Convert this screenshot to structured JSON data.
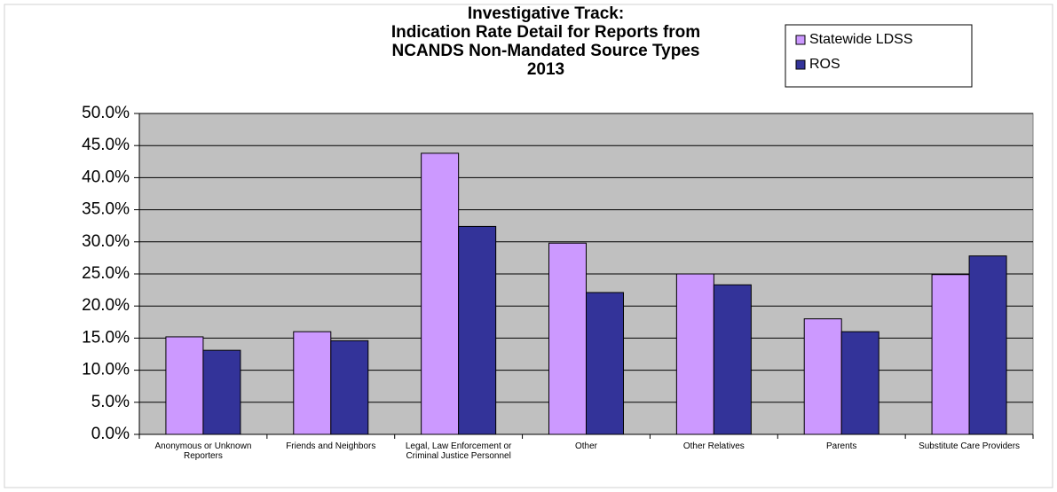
{
  "chart_data": {
    "type": "bar",
    "title": [
      "Investigative Track:",
      "Indication Rate Detail for Reports from",
      "NCANDS Non-Mandated Source Types",
      "2013"
    ],
    "categories": [
      "Anonymous or Unknown Reporters",
      "Friends and Neighbors",
      "Legal, Law Enforcement or Criminal Justice Personnel",
      "Other",
      "Other Relatives",
      "Parents",
      "Substitute Care Providers"
    ],
    "series": [
      {
        "name": "Statewide LDSS",
        "color": "#cc99ff",
        "values": [
          15.2,
          16.0,
          43.8,
          29.8,
          25.0,
          18.0,
          24.9
        ]
      },
      {
        "name": "ROS",
        "color": "#333399",
        "values": [
          13.1,
          14.6,
          32.4,
          22.1,
          23.3,
          16.0,
          27.8
        ]
      }
    ],
    "ylim": [
      0,
      50
    ],
    "yticks": [
      {
        "value": 0,
        "label": "0.0%"
      },
      {
        "value": 5,
        "label": "5.0%"
      },
      {
        "value": 10,
        "label": "10.0%"
      },
      {
        "value": 15,
        "label": "15.0%"
      },
      {
        "value": 20,
        "label": "20.0%"
      },
      {
        "value": 25,
        "label": "25.0%"
      },
      {
        "value": 30,
        "label": "30.0%"
      },
      {
        "value": 35,
        "label": "35.0%"
      },
      {
        "value": 40,
        "label": "40.0%"
      },
      {
        "value": 45,
        "label": "45.0%"
      },
      {
        "value": 50,
        "label": "50.0%"
      }
    ],
    "grid": true,
    "legend": "top-right"
  }
}
